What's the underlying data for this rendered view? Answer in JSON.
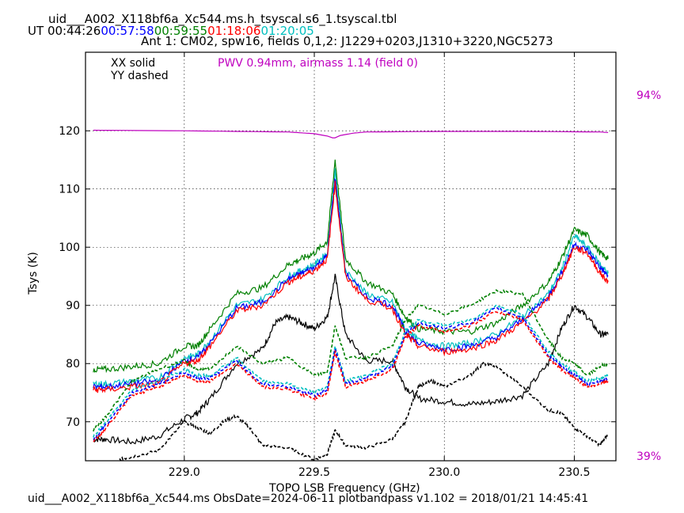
{
  "header": {
    "file_title": "uid___A002_X118bf6a_Xc544.ms.h_tsyscal.s6_1.tsyscal.tbl",
    "ut_label": "UT",
    "times": [
      {
        "text": "00:44:26",
        "color": "#000000"
      },
      {
        "text": "00:57:58",
        "color": "#0000ff"
      },
      {
        "text": "00:59:55",
        "color": "#008000"
      },
      {
        "text": "01:18:06",
        "color": "#ff0000"
      },
      {
        "text": "01:20:05",
        "color": "#00bfbf"
      }
    ],
    "subtitle": "Ant 1: CM02,  spw16,  fields 0,1,2: J1229+0203,J1310+3220,NGC5273"
  },
  "legend": {
    "solid_label": "XX solid",
    "dashed_label": "YY dashed",
    "pwv_label": "PWV 0.94mm, airmass 1.14 (field 0)",
    "pwv_color": "#bf00bf"
  },
  "atm_axis": {
    "top_label": "94%",
    "bottom_label": "39%",
    "color": "#bf00bf"
  },
  "footer": "uid___A002_X118bf6a_Xc544.ms  ObsDate=2024-06-11   plotbandpass v1.102 = 2018/01/21 14:45:41",
  "chart_data": {
    "type": "line",
    "xlabel": "TOPO LSB Frequency (GHz)",
    "ylabel": "Tsys (K)",
    "xlim": [
      228.62,
      230.66
    ],
    "ylim": [
      63.3,
      133.5
    ],
    "xticks": [
      229.0,
      229.5,
      230.0,
      230.5
    ],
    "xtick_labels": [
      "229.0",
      "229.5",
      "230.0",
      "230.5"
    ],
    "yticks": [
      70,
      80,
      90,
      100,
      110,
      120
    ],
    "ytick_labels": [
      "70",
      "80",
      "90",
      "100",
      "110",
      "120"
    ],
    "grid": true,
    "series": [
      {
        "id": "black-xx",
        "color": "#000000",
        "dash": false,
        "x": [
          228.65,
          228.7,
          228.8,
          228.9,
          229.0,
          229.05,
          229.1,
          229.2,
          229.3,
          229.35,
          229.4,
          229.45,
          229.5,
          229.55,
          229.58,
          229.62,
          229.7,
          229.8,
          229.85,
          229.9,
          230.0,
          230.1,
          230.2,
          230.3,
          230.4,
          230.45,
          230.5,
          230.55,
          230.6,
          230.63
        ],
        "y": [
          67,
          67,
          66.5,
          67.5,
          70.5,
          71.5,
          74,
          80,
          82.5,
          87,
          88,
          87,
          86,
          88,
          95,
          85,
          80.5,
          80.5,
          76,
          74,
          73.5,
          73,
          73.5,
          74.5,
          80,
          86,
          90,
          88,
          85,
          85
        ]
      },
      {
        "id": "black-yy",
        "color": "#000000",
        "dash": true,
        "x": [
          228.75,
          228.8,
          228.9,
          229.0,
          229.05,
          229.1,
          229.15,
          229.2,
          229.25,
          229.3,
          229.4,
          229.5,
          229.55,
          229.58,
          229.62,
          229.7,
          229.8,
          229.85,
          229.9,
          229.95,
          230.0,
          230.1,
          230.15,
          230.2,
          230.3,
          230.4,
          230.45,
          230.5,
          230.55,
          230.6,
          230.63
        ],
        "y": [
          63.5,
          64,
          65,
          70,
          69,
          68,
          70,
          71,
          69,
          66,
          65.5,
          63.5,
          64.5,
          68.5,
          66,
          65.5,
          67,
          70,
          76,
          77,
          76,
          78,
          80,
          79.5,
          76,
          72,
          71.5,
          69,
          67.5,
          66,
          68
        ]
      },
      {
        "id": "green-xx",
        "color": "#008000",
        "dash": false,
        "x": [
          228.65,
          228.7,
          228.8,
          228.9,
          229.0,
          229.05,
          229.1,
          229.2,
          229.3,
          229.4,
          229.45,
          229.5,
          229.55,
          229.58,
          229.62,
          229.7,
          229.8,
          229.85,
          229.9,
          230.0,
          230.1,
          230.2,
          230.3,
          230.4,
          230.45,
          230.5,
          230.55,
          230.6,
          230.63
        ],
        "y": [
          79,
          79,
          79.5,
          80,
          83,
          83,
          86,
          92,
          93,
          97,
          98,
          99,
          101,
          115,
          98,
          94,
          92,
          88,
          86,
          85.5,
          85.5,
          87,
          90,
          94,
          98,
          103,
          102,
          99,
          98
        ]
      },
      {
        "id": "cyan-xx",
        "color": "#00bfbf",
        "dash": false,
        "x": [
          228.65,
          228.7,
          228.8,
          228.9,
          229.0,
          229.05,
          229.1,
          229.2,
          229.3,
          229.4,
          229.45,
          229.5,
          229.55,
          229.58,
          229.62,
          229.7,
          229.8,
          229.85,
          229.9,
          230.0,
          230.1,
          230.2,
          230.3,
          230.4,
          230.45,
          230.5,
          230.55,
          230.6,
          230.63
        ],
        "y": [
          76.5,
          76.5,
          77,
          77.5,
          81,
          81.5,
          84,
          90,
          91,
          95,
          96,
          97,
          99,
          113,
          96,
          92,
          90.5,
          86,
          84,
          83,
          83.5,
          85,
          88,
          92,
          96,
          102,
          100,
          97,
          95.5
        ]
      },
      {
        "id": "blue-xx",
        "color": "#0000ff",
        "dash": false,
        "x": [
          228.65,
          228.7,
          228.8,
          228.9,
          229.0,
          229.05,
          229.1,
          229.2,
          229.3,
          229.4,
          229.45,
          229.5,
          229.55,
          229.58,
          229.62,
          229.7,
          229.8,
          229.85,
          229.9,
          230.0,
          230.1,
          230.2,
          230.3,
          230.4,
          230.45,
          230.5,
          230.55,
          230.6,
          230.63
        ],
        "y": [
          76,
          76,
          76.5,
          77,
          80.5,
          81,
          83.5,
          89.5,
          90.5,
          94.5,
          95.5,
          96.5,
          98.5,
          112,
          95.5,
          91.5,
          90,
          85.5,
          83.5,
          82.5,
          83,
          84.5,
          87.5,
          91.5,
          95.5,
          100.5,
          99.5,
          96.5,
          95
        ]
      },
      {
        "id": "red-xx",
        "color": "#ff0000",
        "dash": false,
        "x": [
          228.65,
          228.7,
          228.8,
          228.9,
          229.0,
          229.05,
          229.1,
          229.2,
          229.3,
          229.4,
          229.45,
          229.5,
          229.55,
          229.58,
          229.62,
          229.7,
          229.8,
          229.85,
          229.9,
          230.0,
          230.1,
          230.2,
          230.3,
          230.4,
          230.45,
          230.5,
          230.55,
          230.6,
          230.63
        ],
        "y": [
          75.5,
          75.5,
          76,
          76.5,
          80,
          80.5,
          83,
          89,
          90,
          94,
          95,
          96,
          98,
          111,
          95,
          91,
          89.5,
          85,
          83,
          82,
          82.5,
          84,
          87,
          91,
          95,
          100,
          99,
          95.5,
          94
        ]
      },
      {
        "id": "green-yy",
        "color": "#008000",
        "dash": true,
        "x": [
          228.65,
          228.7,
          228.8,
          228.9,
          229.0,
          229.05,
          229.1,
          229.2,
          229.3,
          229.4,
          229.5,
          229.55,
          229.58,
          229.62,
          229.7,
          229.8,
          229.85,
          229.9,
          230.0,
          230.1,
          230.2,
          230.3,
          230.4,
          230.45,
          230.5,
          230.55,
          230.6,
          230.63
        ],
        "y": [
          68.5,
          71,
          77,
          79,
          80.5,
          79,
          79,
          83,
          80,
          81,
          78,
          78.5,
          86.5,
          81,
          81,
          83,
          87.5,
          90,
          88.5,
          90,
          92.5,
          92,
          84,
          81,
          80,
          78,
          79.5,
          80
        ]
      },
      {
        "id": "cyan-yy",
        "color": "#00bfbf",
        "dash": true,
        "x": [
          228.65,
          228.7,
          228.8,
          228.9,
          229.0,
          229.05,
          229.1,
          229.2,
          229.3,
          229.4,
          229.5,
          229.55,
          229.58,
          229.62,
          229.7,
          229.8,
          229.85,
          229.9,
          230.0,
          230.1,
          230.2,
          230.3,
          230.4,
          230.45,
          230.5,
          230.55,
          230.6,
          230.63
        ],
        "y": [
          67.5,
          70,
          75.5,
          77,
          79,
          78,
          78,
          81,
          77,
          76.5,
          75,
          76,
          83,
          77,
          78,
          80,
          85.5,
          87.5,
          86.5,
          87.5,
          90,
          88.5,
          82,
          80,
          78.5,
          77,
          77.5,
          78
        ]
      },
      {
        "id": "blue-yy",
        "color": "#0000ff",
        "dash": true,
        "x": [
          228.65,
          228.7,
          228.8,
          228.9,
          229.0,
          229.05,
          229.1,
          229.2,
          229.3,
          229.4,
          229.5,
          229.55,
          229.58,
          229.62,
          229.7,
          229.8,
          229.85,
          229.9,
          230.0,
          230.1,
          230.2,
          230.3,
          230.4,
          230.45,
          230.5,
          230.55,
          230.6,
          230.63
        ],
        "y": [
          67,
          69.5,
          75,
          76.5,
          78.5,
          77.5,
          77.5,
          80.5,
          76.5,
          76,
          74.5,
          75.5,
          82.5,
          76.5,
          77.5,
          79.5,
          85,
          87,
          86,
          87,
          89.5,
          88,
          81.5,
          79.5,
          78,
          76.5,
          77,
          77.5
        ]
      },
      {
        "id": "red-yy",
        "color": "#ff0000",
        "dash": true,
        "x": [
          228.65,
          228.7,
          228.8,
          228.9,
          229.0,
          229.05,
          229.1,
          229.2,
          229.3,
          229.4,
          229.5,
          229.55,
          229.58,
          229.62,
          229.7,
          229.8,
          229.85,
          229.9,
          230.0,
          230.1,
          230.2,
          230.3,
          230.4,
          230.45,
          230.5,
          230.55,
          230.6,
          230.63
        ],
        "y": [
          66.5,
          69,
          74.5,
          76,
          78,
          77,
          77,
          80,
          76,
          75.5,
          74,
          75,
          82,
          76,
          77,
          79,
          84.5,
          86.5,
          85.5,
          86.5,
          89,
          87.5,
          81,
          79,
          77.5,
          76,
          76.5,
          77
        ]
      },
      {
        "id": "pwv-atm",
        "color": "#bf00bf",
        "dash": false,
        "x": [
          228.65,
          229.0,
          229.4,
          229.5,
          229.55,
          229.57,
          229.58,
          229.6,
          229.65,
          229.7,
          230.0,
          230.3,
          230.6,
          230.63
        ],
        "y": [
          120.1,
          120.0,
          119.8,
          119.5,
          119.1,
          118.8,
          118.8,
          119.2,
          119.6,
          119.8,
          119.9,
          119.9,
          119.8,
          119.7
        ]
      }
    ]
  }
}
